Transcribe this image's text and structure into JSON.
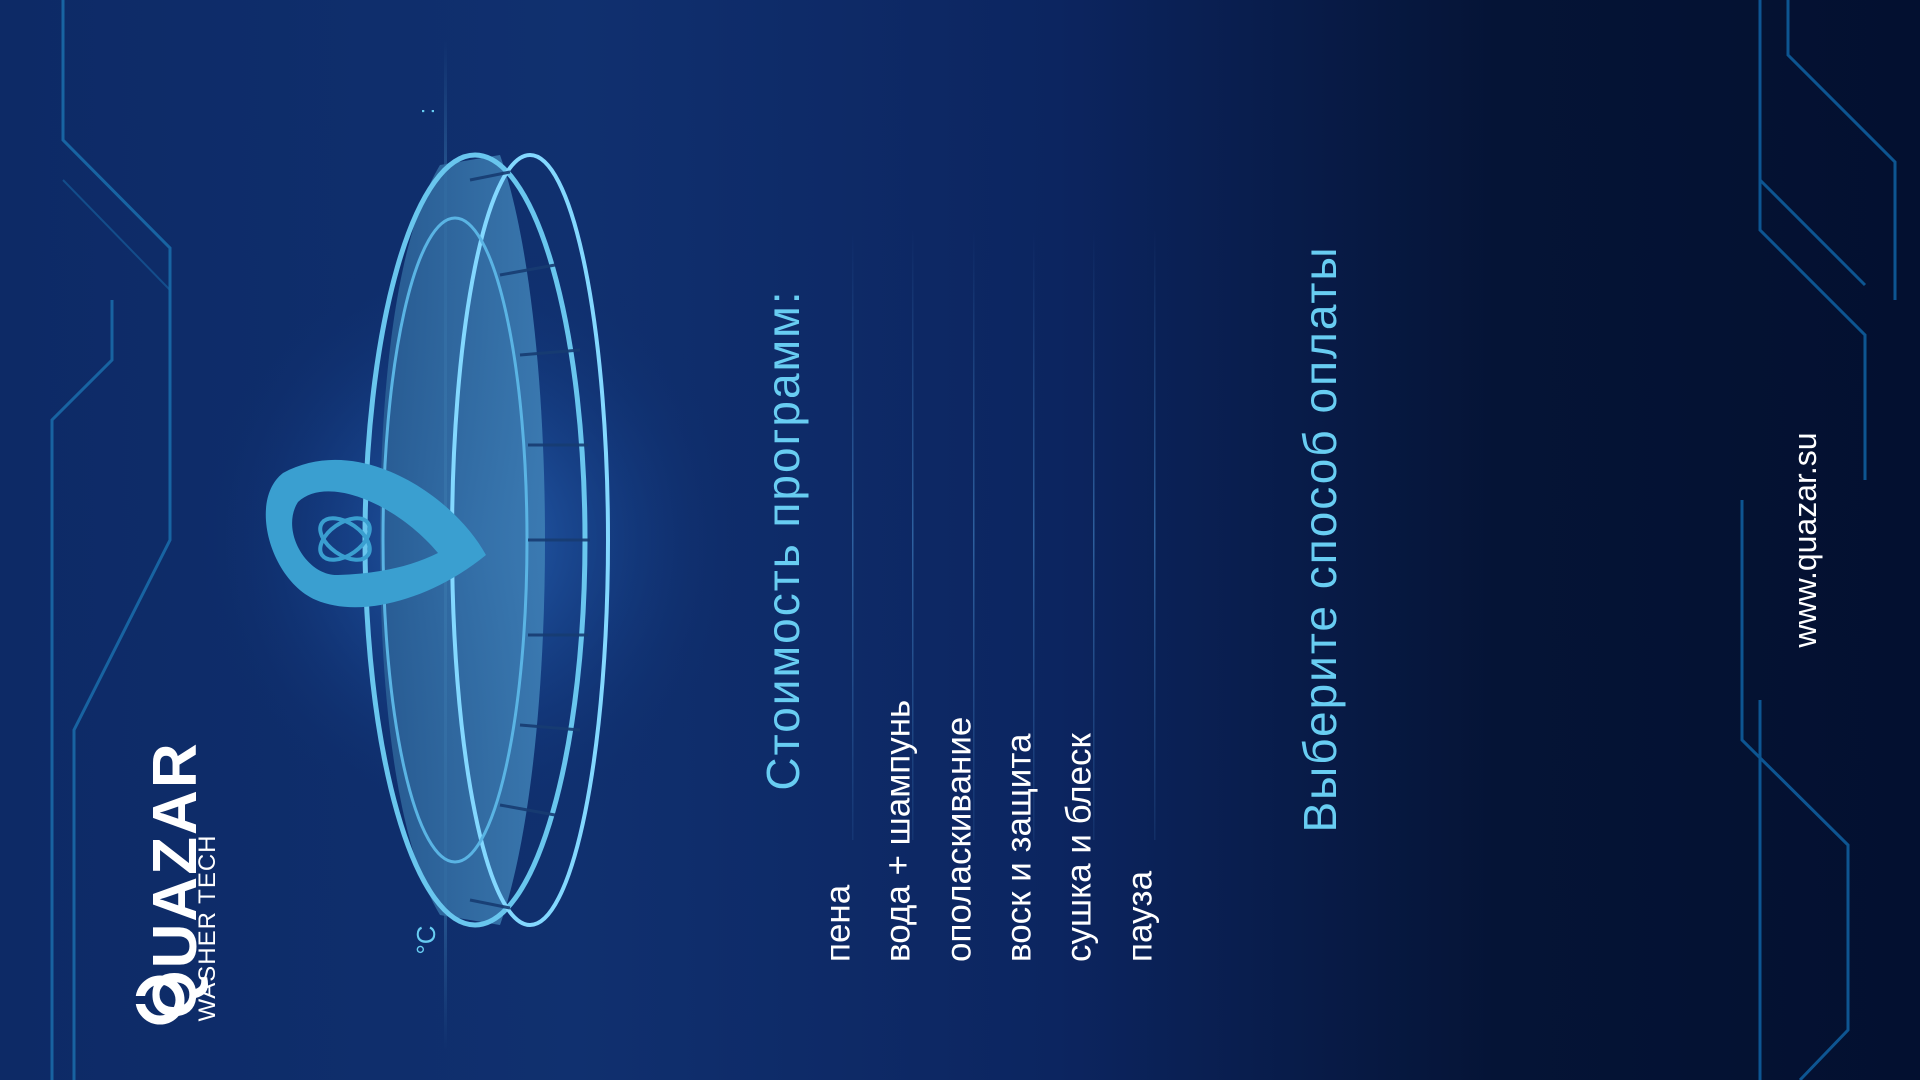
{
  "brand": {
    "name": "QUAZAR",
    "tagline": "WASHER TECH"
  },
  "display": {
    "temperature_unit": "°C",
    "clock_separator": ":"
  },
  "prices": {
    "title": "Стоимость  программ:",
    "programs": [
      {
        "label": "пена"
      },
      {
        "label": "вода + шампунь"
      },
      {
        "label": "ополаскивание"
      },
      {
        "label": "воск и защита"
      },
      {
        "label": "сушка и блеск"
      },
      {
        "label": "пауза"
      }
    ]
  },
  "payment": {
    "prompt": "Выберите  способ  оплаты"
  },
  "footer": {
    "website": "www.quazar.su"
  },
  "colors": {
    "accent": "#68cdf2",
    "background_dark": "#031030",
    "background_mid": "#10306f",
    "text": "#ffffff",
    "circuit": "#1a6aa8"
  }
}
